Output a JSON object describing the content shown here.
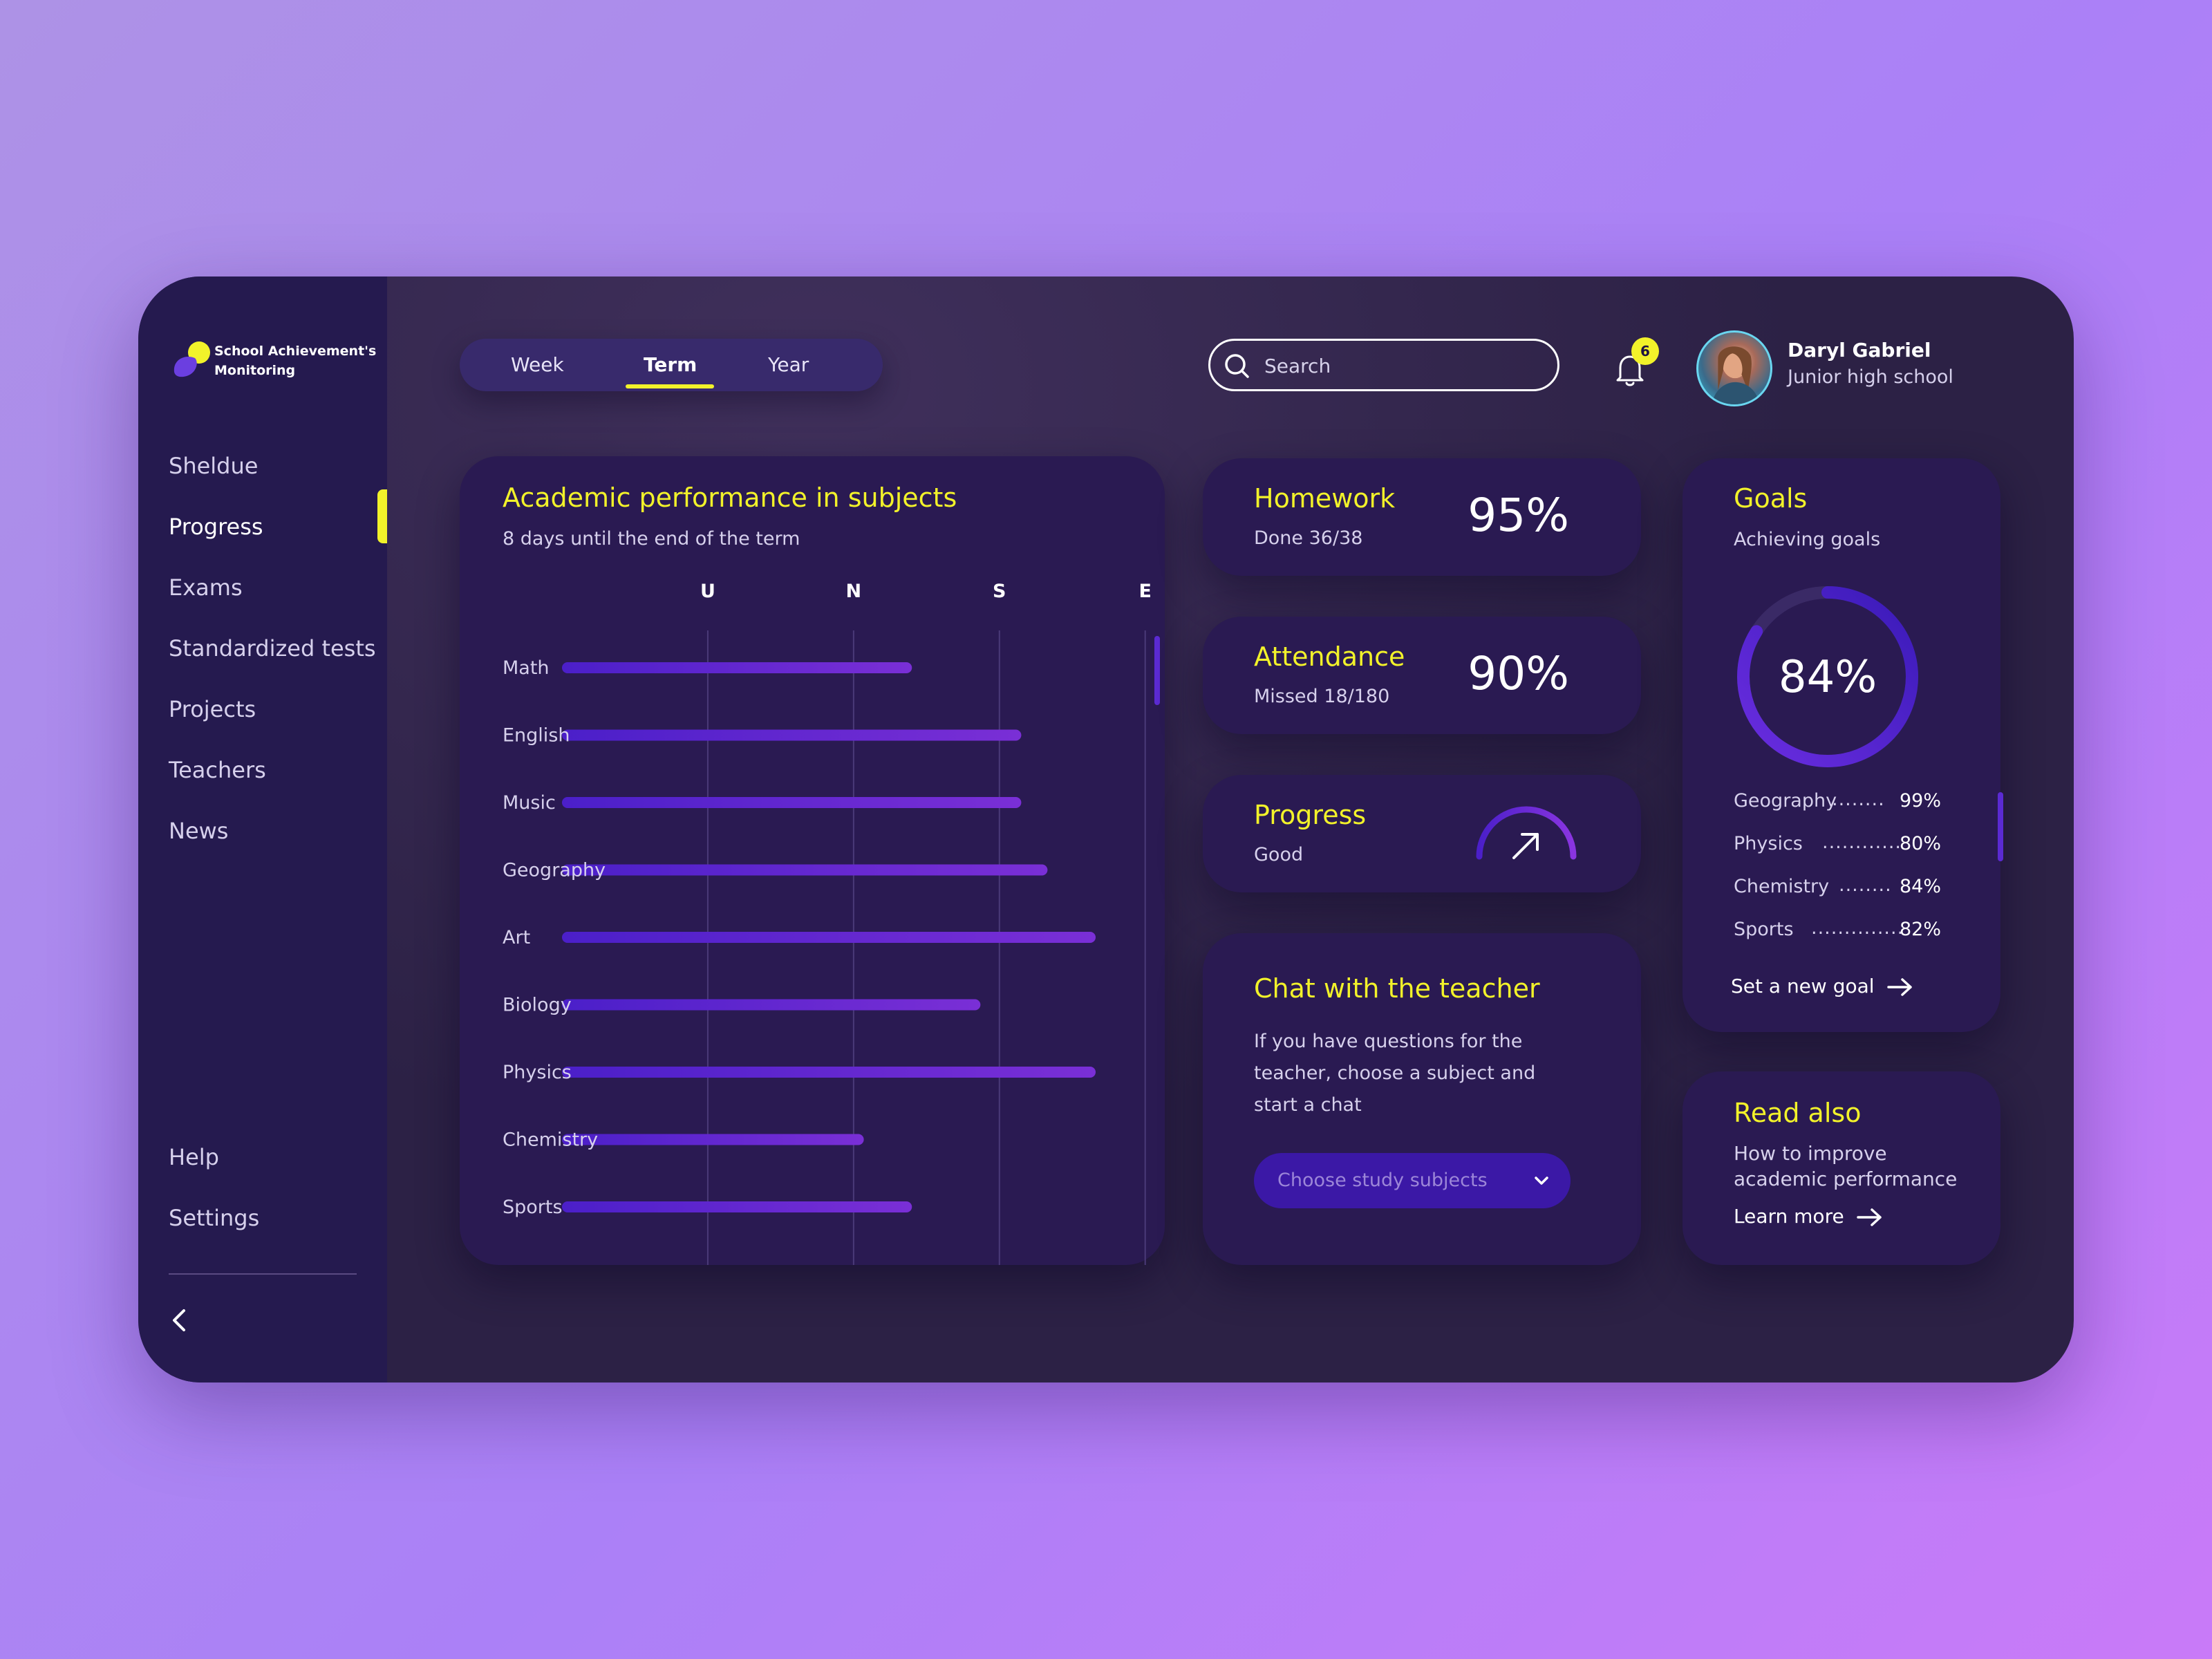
{
  "app": {
    "name": "School Achievement's Monitoring"
  },
  "sidebar": {
    "items": [
      {
        "label": "Sheldue"
      },
      {
        "label": "Progress"
      },
      {
        "label": "Exams"
      },
      {
        "label": "Standardized tests"
      },
      {
        "label": "Projects"
      },
      {
        "label": "Teachers"
      },
      {
        "label": "News"
      }
    ],
    "active_index": 1,
    "bottom_items": [
      {
        "label": "Help"
      },
      {
        "label": "Settings"
      }
    ]
  },
  "tabs": [
    {
      "label": "Week"
    },
    {
      "label": "Term"
    },
    {
      "label": "Year"
    }
  ],
  "active_tab": 1,
  "search": {
    "placeholder": "Search"
  },
  "notifications": {
    "count": "6"
  },
  "user": {
    "name": "Daryl Gabriel",
    "role": "Junior high school"
  },
  "academic": {
    "title": "Academic performance in subjects",
    "subtitle": "8 days until the end of the term"
  },
  "chart_data": {
    "type": "bar",
    "orientation": "horizontal",
    "grades": [
      "U",
      "N",
      "S",
      "E"
    ],
    "categories": [
      "Math",
      "English",
      "Music",
      "Geography",
      "Art",
      "Biology",
      "Physics",
      "Chemistry",
      "Sports"
    ],
    "values": [
      2.4,
      3.15,
      3.15,
      3.33,
      3.66,
      2.87,
      3.66,
      2.07,
      2.4
    ],
    "xlim": [
      0,
      3.66
    ],
    "grid": true
  },
  "stats": {
    "homework": {
      "title": "Homework",
      "sub": "Done 36/38",
      "value": "95%"
    },
    "attendance": {
      "title": "Attendance",
      "sub": "Missed 18/180",
      "value": "90%"
    },
    "progress": {
      "title": "Progress",
      "sub": "Good"
    }
  },
  "chat": {
    "title": "Chat with the teacher",
    "body": "If you have questions for the teacher, choose a subject and start a chat",
    "select_placeholder": "Choose study subjects"
  },
  "goals": {
    "title": "Goals",
    "subtitle": "Achieving goals",
    "overall": "84%",
    "overall_fraction": 0.84,
    "items": [
      {
        "name": "Geography",
        "dots": "........",
        "value": "99%"
      },
      {
        "name": "Physics",
        "dots": "............",
        "value": "80%"
      },
      {
        "name": "Chemistry",
        "dots": "........",
        "value": "84%"
      },
      {
        "name": "Sports",
        "dots": "..............",
        "value": "82%"
      }
    ],
    "link": "Set a new goal"
  },
  "read_also": {
    "title": "Read also",
    "subtitle": "How to improve academic performance",
    "link": "Learn more"
  },
  "colors": {
    "accent": "#f2f22a",
    "bar_start": "#4b1fc9",
    "bar_end": "#7a2fd6",
    "card": "#2a1a52",
    "sidebar": "#251a4f"
  }
}
